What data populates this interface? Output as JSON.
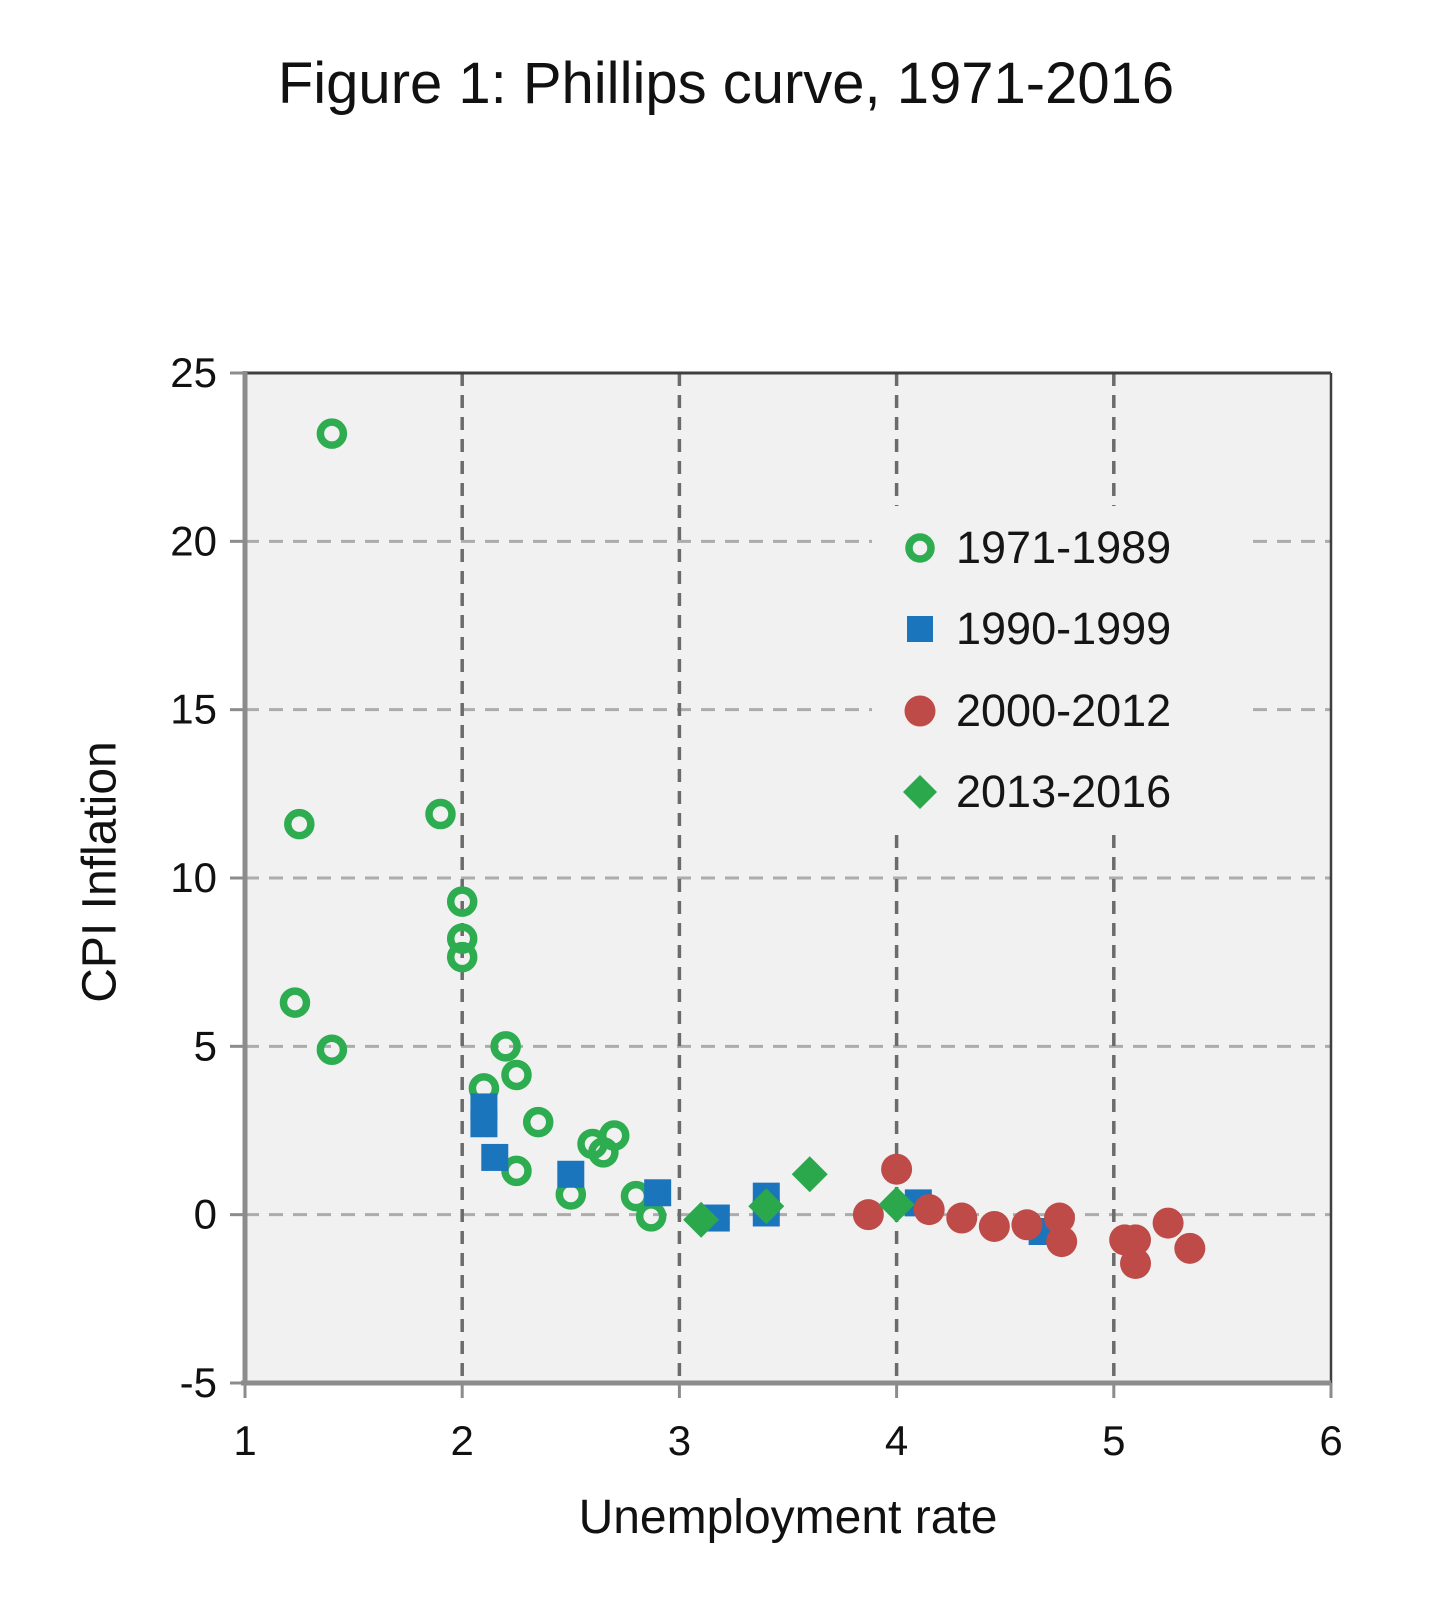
{
  "chart_data": {
    "type": "scatter",
    "title": "Figure 1: Phillips curve, 1971-2016",
    "xlabel": "Unemployment rate",
    "ylabel": "CPI Inflation",
    "xlim": [
      1,
      6
    ],
    "ylim": [
      -5,
      25
    ],
    "x_ticks": [
      1,
      2,
      3,
      4,
      5,
      6
    ],
    "y_ticks": [
      25,
      20,
      15,
      10,
      5,
      0,
      -5
    ],
    "grid": "dashed",
    "legend_position": "inside-upper-right",
    "plot_bg": "#f1f1f1",
    "grid_color_h": "#acacac",
    "grid_color_v": "#6b6b6b",
    "axis_color": "#8c8c8c",
    "border_color": "#3f3f3f",
    "series": [
      {
        "name": "1971-1989",
        "marker": "open-circle",
        "color": "#2dac50",
        "points": [
          [
            1.23,
            6.3
          ],
          [
            1.25,
            11.6
          ],
          [
            1.4,
            23.2
          ],
          [
            1.4,
            4.9
          ],
          [
            1.9,
            11.9
          ],
          [
            2.0,
            9.3
          ],
          [
            2.0,
            8.2
          ],
          [
            2.0,
            7.65
          ],
          [
            2.1,
            3.75
          ],
          [
            2.2,
            5.0
          ],
          [
            2.25,
            4.15
          ],
          [
            2.25,
            1.3
          ],
          [
            2.35,
            2.75
          ],
          [
            2.5,
            0.6
          ],
          [
            2.6,
            2.1
          ],
          [
            2.65,
            1.85
          ],
          [
            2.7,
            2.35
          ],
          [
            2.8,
            0.55
          ],
          [
            2.87,
            -0.05
          ]
        ]
      },
      {
        "name": "1990-1999",
        "marker": "square",
        "color": "#1b75bc",
        "points": [
          [
            2.1,
            3.2
          ],
          [
            2.1,
            2.7
          ],
          [
            2.15,
            1.7
          ],
          [
            2.5,
            1.2
          ],
          [
            2.9,
            0.65
          ],
          [
            3.17,
            -0.1
          ],
          [
            3.4,
            0.55
          ],
          [
            3.4,
            0.05
          ],
          [
            4.1,
            0.35
          ],
          [
            4.67,
            -0.5
          ]
        ]
      },
      {
        "name": "2000-2012",
        "marker": "circle",
        "color": "#be4b48",
        "points": [
          [
            3.87,
            0.0
          ],
          [
            4.0,
            1.35
          ],
          [
            4.15,
            0.15
          ],
          [
            4.3,
            -0.1
          ],
          [
            4.45,
            -0.35
          ],
          [
            4.6,
            -0.3
          ],
          [
            4.75,
            -0.1
          ],
          [
            4.76,
            -0.8
          ],
          [
            5.05,
            -0.75
          ],
          [
            5.1,
            -0.75
          ],
          [
            5.1,
            -1.45
          ],
          [
            5.25,
            -0.25
          ],
          [
            5.35,
            -1.0
          ]
        ]
      },
      {
        "name": "2013-2016",
        "marker": "diamond",
        "color": "#2ba74c",
        "points": [
          [
            3.1,
            -0.15
          ],
          [
            3.4,
            0.25
          ],
          [
            3.6,
            1.2
          ],
          [
            4.0,
            0.3
          ]
        ]
      }
    ]
  }
}
